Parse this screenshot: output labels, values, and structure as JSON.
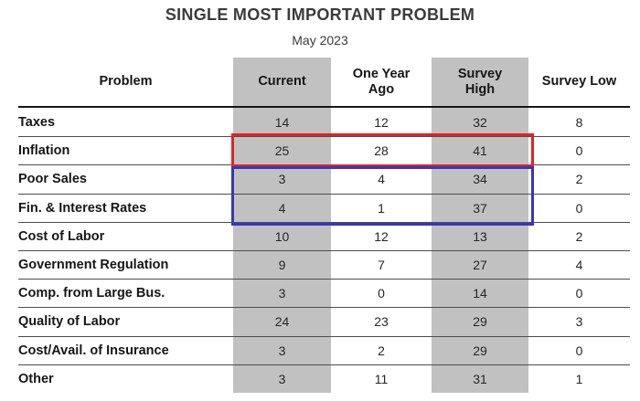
{
  "title": "SINGLE MOST IMPORTANT PROBLEM",
  "subtitle": "May 2023",
  "colors": {
    "shaded_column": "#c1c1c1",
    "red_highlight": "#e32222",
    "blue_highlight": "#3636c2",
    "row_divider": "#4d4d4d",
    "header_divider": "#161616"
  },
  "table": {
    "columns": [
      {
        "label": "Problem"
      },
      {
        "label": "Current"
      },
      {
        "label": "One Year\nAgo"
      },
      {
        "label": "Survey\nHigh"
      },
      {
        "label": "Survey Low"
      }
    ],
    "rows": [
      {
        "problem": "Taxes",
        "values": [
          "14",
          "12",
          "32",
          "8"
        ],
        "highlight": "none"
      },
      {
        "problem": "Inflation",
        "values": [
          "25",
          "28",
          "41",
          "0"
        ],
        "highlight": "red"
      },
      {
        "problem": "Poor Sales",
        "values": [
          "3",
          "4",
          "34",
          "2"
        ],
        "highlight": "blue"
      },
      {
        "problem": "Fin. & Interest Rates",
        "values": [
          "4",
          "1",
          "37",
          "0"
        ],
        "highlight": "blue"
      },
      {
        "problem": "Cost of Labor",
        "values": [
          "10",
          "12",
          "13",
          "2"
        ],
        "highlight": "none"
      },
      {
        "problem": "Government Regulation",
        "values": [
          "9",
          "7",
          "27",
          "4"
        ],
        "highlight": "none"
      },
      {
        "problem": "Comp. from Large Bus.",
        "values": [
          "3",
          "0",
          "14",
          "0"
        ],
        "highlight": "none"
      },
      {
        "problem": "Quality of Labor",
        "values": [
          "24",
          "23",
          "29",
          "3"
        ],
        "highlight": "none"
      },
      {
        "problem": "Cost/Avail. of Insurance",
        "values": [
          "3",
          "2",
          "29",
          "0"
        ],
        "highlight": "none"
      },
      {
        "problem": "Other",
        "values": [
          "3",
          "11",
          "31",
          "1"
        ],
        "highlight": "none"
      }
    ]
  },
  "chart_data": {
    "type": "table",
    "title": "SINGLE MOST IMPORTANT PROBLEM",
    "subtitle": "May 2023",
    "categories": [
      "Taxes",
      "Inflation",
      "Poor Sales",
      "Fin. & Interest Rates",
      "Cost of Labor",
      "Government Regulation",
      "Comp. from Large Bus.",
      "Quality of Labor",
      "Cost/Avail. of Insurance",
      "Other"
    ],
    "series": [
      {
        "name": "Current",
        "values": [
          14,
          25,
          3,
          4,
          10,
          9,
          3,
          24,
          3,
          3
        ]
      },
      {
        "name": "One Year Ago",
        "values": [
          12,
          28,
          4,
          1,
          12,
          7,
          0,
          23,
          2,
          11
        ]
      },
      {
        "name": "Survey High",
        "values": [
          32,
          41,
          34,
          37,
          13,
          27,
          14,
          29,
          29,
          31
        ]
      },
      {
        "name": "Survey Low",
        "values": [
          8,
          0,
          2,
          0,
          2,
          4,
          0,
          3,
          0,
          1
        ]
      }
    ],
    "annotations": [
      "red box outlines Inflation row across Current, One Year Ago and Survey High columns",
      "blue box outlines Poor Sales and Fin. & Interest Rates rows across Current, One Year Ago and Survey High columns",
      "Current and Survey High columns have gray shading"
    ]
  }
}
